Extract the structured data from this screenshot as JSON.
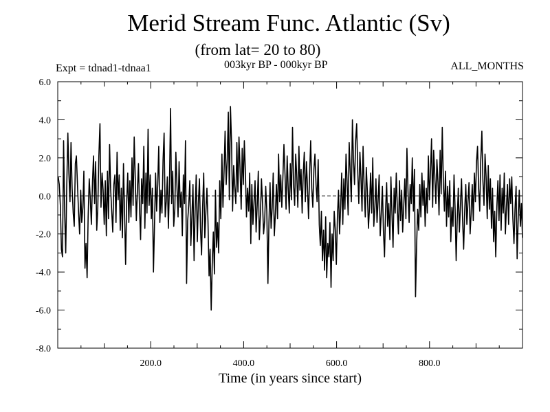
{
  "chart_data": {
    "type": "line",
    "title": "Merid Stream Func. Atlantic (Sv)",
    "subtitle": "(from lat= 20 to 80)",
    "experiment_label": "Expt = tdnad1-tdnaa1",
    "period_label": "003kyr BP - 000kyr BP",
    "months_label": "ALL_MONTHS",
    "xlabel": "Time (in years since start)",
    "ylabel": "",
    "xlim": [
      0,
      1000
    ],
    "ylim": [
      -8.0,
      6.0
    ],
    "x_ticks": [
      200.0,
      400.0,
      600.0,
      800.0
    ],
    "x_tick_labels": [
      "200.0",
      "400.0",
      "600.0",
      "800.0"
    ],
    "y_ticks": [
      6.0,
      4.0,
      2.0,
      0.0,
      -2.0,
      -4.0,
      -6.0,
      -8.0
    ],
    "y_tick_labels": [
      "6.0",
      "4.0",
      "2.0",
      "0.0",
      "-2.0",
      "-4.0",
      "-6.0",
      "-8.0"
    ],
    "zero_line": true,
    "grid": false,
    "x_range": [
      1,
      1000
    ],
    "series": [
      {
        "values": [
          1.0,
          0.6,
          -0.5,
          -2.8,
          -3.2,
          2.9,
          -0.8,
          -3.0,
          0.5,
          3.3,
          1.2,
          -0.3,
          2.8,
          0.4,
          -0.9,
          -1.6,
          1.7,
          2.1,
          0.6,
          -0.8,
          -2.0,
          0.3,
          -1.4,
          -0.6,
          1.3,
          -3.8,
          -2.5,
          -4.3,
          -1.1,
          0.9,
          -0.2,
          -1.5,
          0.7,
          2.1,
          -0.4,
          1.8,
          -1.8,
          -0.7,
          2.1,
          3.8,
          -0.6,
          1.2,
          0.3,
          -1.5,
          0.8,
          -2.1,
          1.3,
          -1.2,
          2.7,
          0.4,
          -0.8,
          -1.9,
          0.6,
          1.1,
          -1.4,
          2.3,
          -0.2,
          1.1,
          -1.8,
          0.4,
          -2.2,
          1.7,
          -0.9,
          -3.6,
          -0.3,
          1.2,
          -1.4,
          0.8,
          -1.1,
          2.0,
          -0.5,
          3.1,
          1.0,
          -1.3,
          0.2,
          1.7,
          -0.6,
          -2.3,
          0.9,
          -0.4,
          2.6,
          -1.7,
          1.2,
          -0.9,
          3.5,
          -0.5,
          1.1,
          -1.2,
          0.4,
          -4.0,
          -1.6,
          1.2,
          -0.8,
          0.6,
          2.6,
          -1.4,
          0.3,
          -0.9,
          1.9,
          3.3,
          -1.1,
          -0.3,
          1.0,
          -1.7,
          0.6,
          4.6,
          -0.4,
          1.3,
          -1.6,
          -0.7,
          2.3,
          0.5,
          -1.1,
          1.8,
          -0.6,
          0.2,
          -2.1,
          1.1,
          -0.4,
          2.9,
          -4.6,
          -1.3,
          -0.5,
          0.8,
          -2.6,
          -1.0,
          0.6,
          -3.4,
          -0.8,
          1.1,
          -2.4,
          -0.4,
          0.9,
          -1.7,
          -3.1,
          -0.6,
          1.2,
          -2.2,
          -0.9,
          0.4,
          -1.3,
          -4.2,
          -2.8,
          -6.0,
          -3.6,
          -1.9,
          -4.1,
          0.3,
          -2.7,
          -1.4,
          -3.0,
          0.8,
          -1.2,
          2.2,
          -0.6,
          1.3,
          3.4,
          0.6,
          1.9,
          4.4,
          -0.2,
          4.7,
          2.8,
          -0.8,
          1.6,
          0.5,
          -0.4,
          2.8,
          0.2,
          3.1,
          1.4,
          -0.7,
          2.5,
          0.6,
          2.9,
          1.2,
          -1.1,
          0.4,
          -0.8,
          1.2,
          -2.5,
          0.6,
          -1.5,
          -0.4,
          0.8,
          -1.9,
          -0.5,
          1.3,
          -2.3,
          -1.0,
          0.9,
          -0.4,
          -2.0,
          -1.3,
          0.5,
          -0.8,
          -4.6,
          -1.4,
          0.7,
          -1.7,
          -0.6,
          1.2,
          -2.1,
          -0.9,
          0.6,
          -1.2,
          2.2,
          -0.3,
          1.1,
          -0.6,
          0.9,
          2.7,
          1.1,
          -0.7,
          2.1,
          0.4,
          -0.9,
          1.7,
          -0.2,
          3.6,
          0.6,
          -0.5,
          2.2,
          1.0,
          -0.6,
          2.6,
          0.3,
          1.4,
          -0.9,
          1.1,
          2.3,
          -0.3,
          1.8,
          0.5,
          -1.2,
          1.1,
          2.9,
          0.4,
          -0.6,
          1.4,
          2.2,
          0.6,
          -0.3,
          1.9,
          -1.5,
          -2.6,
          -0.8,
          -3.4,
          -1.8,
          -3.9,
          -1.1,
          -4.3,
          -2.5,
          -3.2,
          -1.4,
          -4.8,
          -2.0,
          -3.4,
          -0.8,
          -1.8,
          -3.6,
          -1.1,
          0.3,
          -2.0,
          -0.6,
          1.2,
          -1.5,
          0.9,
          -0.7,
          2.2,
          0.8,
          -1.0,
          2.8,
          1.2,
          -0.3,
          4.0,
          1.9,
          0.6,
          2.9,
          3.8,
          1.3,
          -0.4,
          2.3,
          1.0,
          -0.8,
          2.6,
          0.4,
          -1.1,
          1.5,
          0.2,
          -1.7,
          -0.6,
          1.2,
          -0.9,
          2.0,
          -1.6,
          -0.6,
          0.9,
          -1.4,
          -0.3,
          1.1,
          -2.1,
          -0.9,
          0.5,
          -1.8,
          -3.2,
          -0.8,
          0.7,
          -1.6,
          -0.4,
          -2.3,
          1.0,
          -1.0,
          -2.7,
          0.4,
          -0.9,
          1.2,
          -0.6,
          -2.0,
          0.8,
          -1.3,
          0.3,
          -1.9,
          -0.5,
          0.9,
          -1.2,
          2.5,
          0.2,
          -1.4,
          0.6,
          -0.4,
          2.0,
          -0.8,
          1.4,
          -5.3,
          -2.6,
          -0.7,
          -1.8,
          0.6,
          -1.1,
          1.2,
          -0.5,
          0.8,
          -1.6,
          0.4,
          -0.9,
          2.1,
          -0.2,
          1.3,
          3.0,
          -0.6,
          2.4,
          1.1,
          -0.4,
          1.9,
          0.7,
          -1.0,
          2.4,
          0.1,
          3.6,
          0.7,
          -0.8,
          1.3,
          -1.6,
          0.5,
          -1.1,
          0.8,
          -2.4,
          -0.6,
          -1.6,
          1.1,
          -0.7,
          -3.4,
          -1.2,
          0.4,
          -1.9,
          -0.5,
          0.9,
          -1.3,
          -2.8,
          -0.7,
          0.6,
          -1.5,
          -0.4,
          0.7,
          -2.0,
          -0.9,
          0.6,
          -1.3,
          1.2,
          -0.3,
          1.8,
          2.6,
          0.4,
          -0.8,
          1.9,
          3.4,
          0.8,
          -0.5,
          2.2,
          1.0,
          -1.2,
          1.6,
          -0.7,
          0.9,
          -1.7,
          0.4,
          -2.4,
          -0.8,
          -3.2,
          -0.6,
          0.8,
          -1.3,
          1.1,
          -1.8,
          0.4,
          -0.9,
          1.2,
          -2.0,
          -0.5,
          0.6,
          -1.5,
          0.9,
          -0.4,
          1.0,
          -1.2,
          -2.5,
          -0.7,
          0.5,
          -3.3,
          -1.1,
          0.3,
          -1.6,
          -0.4,
          -2.2
        ]
      }
    ]
  }
}
